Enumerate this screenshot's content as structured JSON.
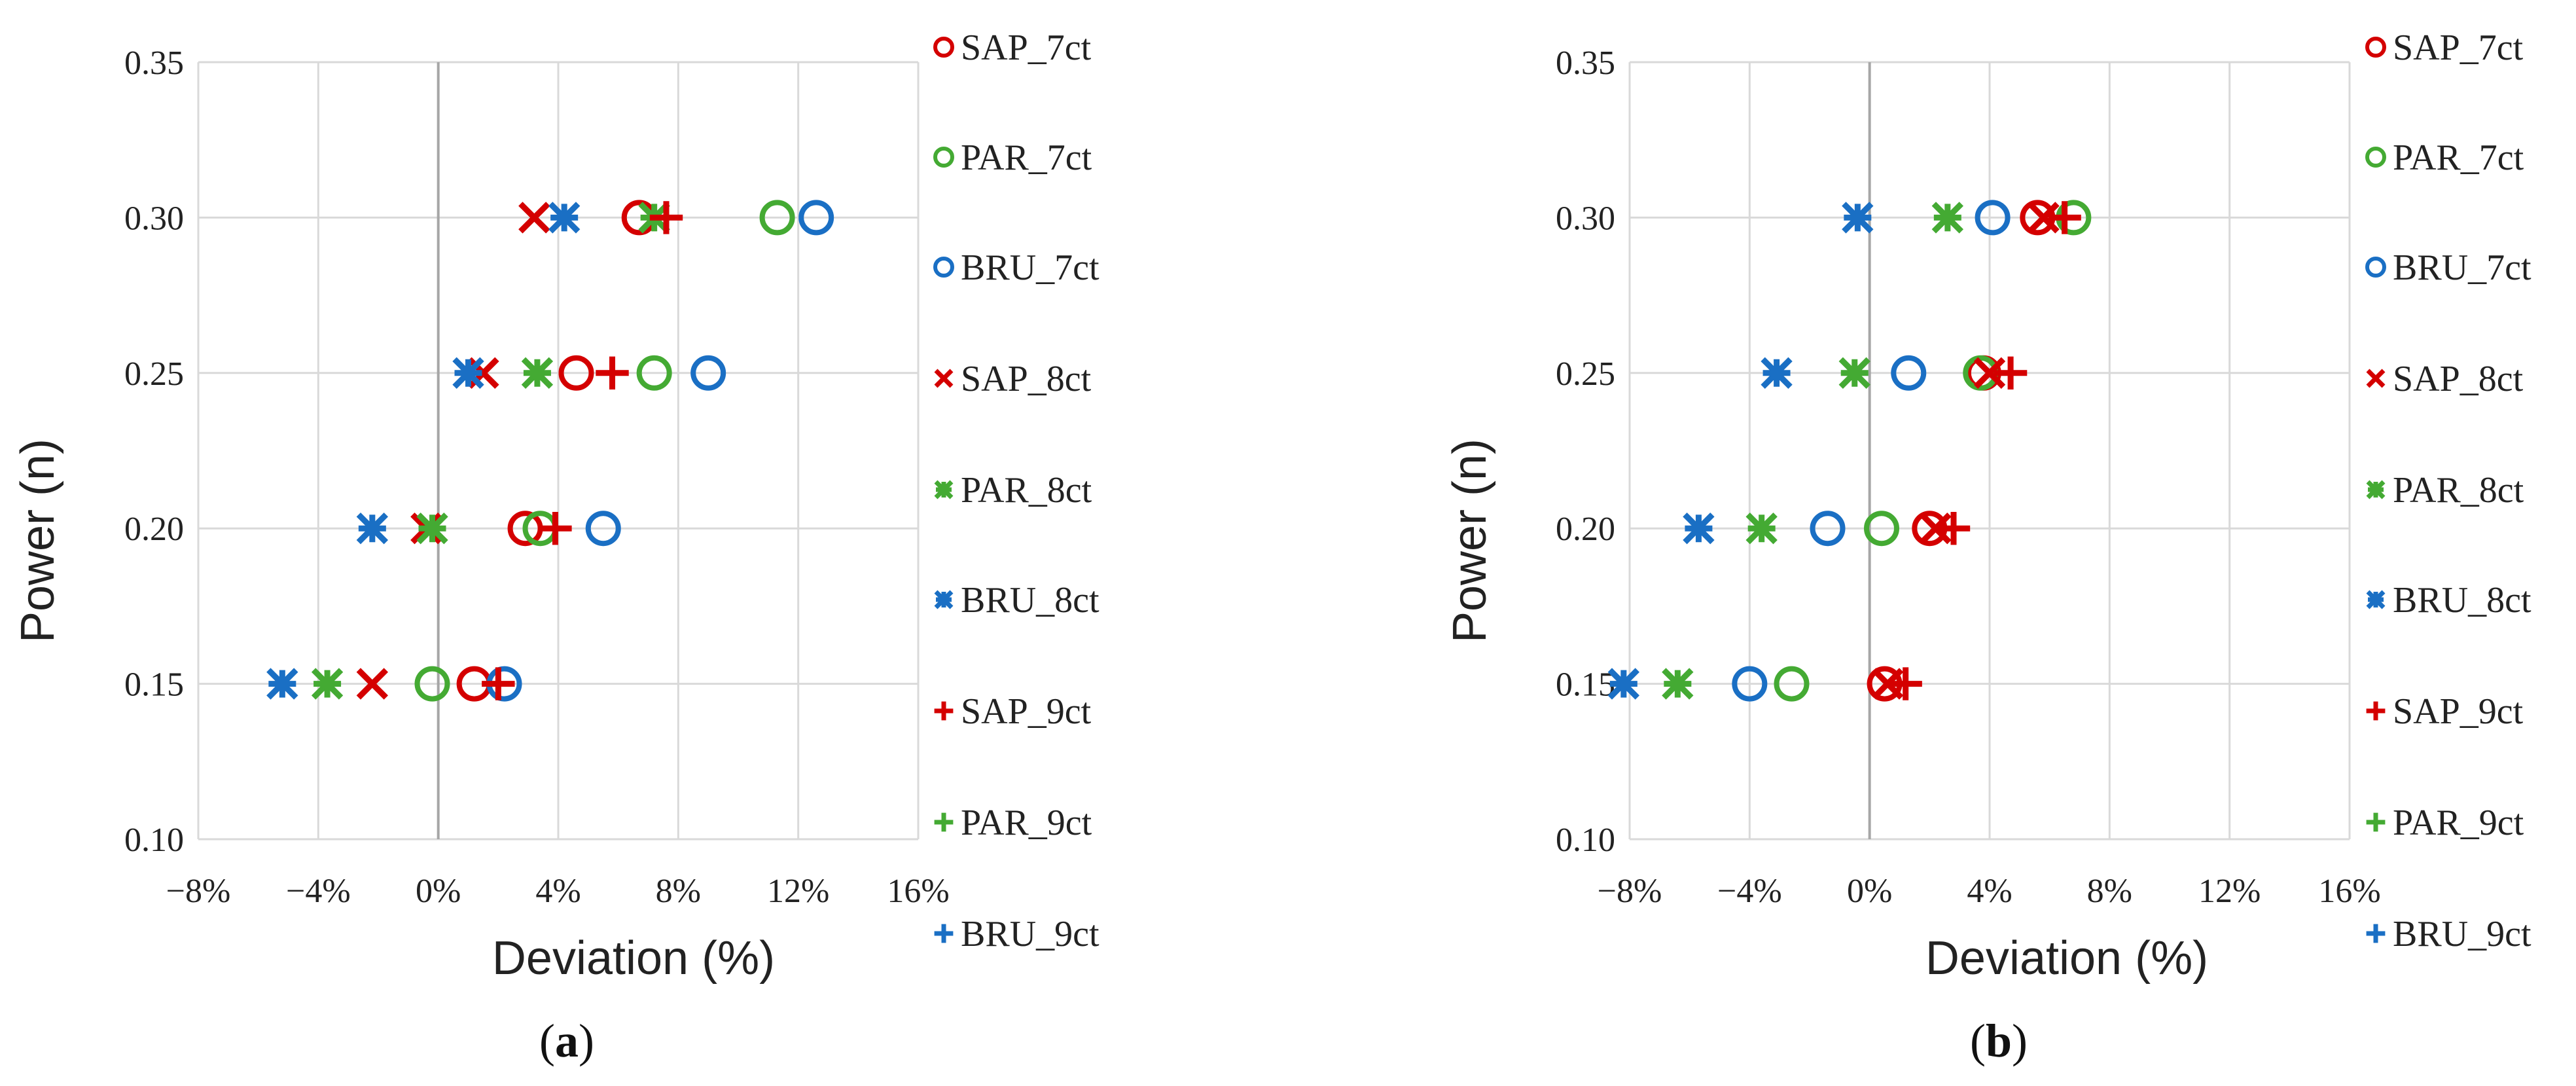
{
  "chart_data": [
    {
      "type": "scatter",
      "caption": "(a)",
      "caption_parts": [
        "(",
        "a",
        ")"
      ],
      "xlabel": "Deviation (%)",
      "ylabel": "Power (n)",
      "xlim": [
        -8,
        16
      ],
      "ylim": [
        0.1,
        0.35
      ],
      "xticks": [
        "−8%",
        "−4%",
        "0%",
        "4%",
        "8%",
        "12%",
        "16%"
      ],
      "yticks": [
        "0.10",
        "0.15",
        "0.20",
        "0.25",
        "0.30",
        "0.35"
      ],
      "legend_position": "right",
      "series": [
        {
          "name": "SAP_7ct",
          "color": "#d40000",
          "marker": "circle",
          "points": [
            {
              "y": 0.3,
              "x": 6.7
            },
            {
              "y": 0.25,
              "x": 4.6
            },
            {
              "y": 0.2,
              "x": 2.9
            },
            {
              "y": 0.15,
              "x": 1.2
            }
          ]
        },
        {
          "name": "PAR_7ct",
          "color": "#44aa33",
          "marker": "circle",
          "points": [
            {
              "y": 0.3,
              "x": 11.3
            },
            {
              "y": 0.25,
              "x": 7.2
            },
            {
              "y": 0.2,
              "x": 3.4
            },
            {
              "y": 0.15,
              "x": -0.2
            }
          ]
        },
        {
          "name": "BRU_7ct",
          "color": "#1a6fc4",
          "marker": "circle",
          "points": [
            {
              "y": 0.3,
              "x": 12.6
            },
            {
              "y": 0.25,
              "x": 9.0
            },
            {
              "y": 0.2,
              "x": 5.5
            },
            {
              "y": 0.15,
              "x": 2.2
            }
          ]
        },
        {
          "name": "SAP_8ct",
          "color": "#d40000",
          "marker": "x",
          "points": [
            {
              "y": 0.3,
              "x": 3.2
            },
            {
              "y": 0.25,
              "x": 1.5
            },
            {
              "y": 0.2,
              "x": -0.4
            },
            {
              "y": 0.15,
              "x": -2.2
            }
          ]
        },
        {
          "name": "PAR_8ct",
          "color": "#44aa33",
          "marker": "asterisk",
          "points": [
            {
              "y": 0.3,
              "x": 7.2
            },
            {
              "y": 0.25,
              "x": 3.3
            },
            {
              "y": 0.2,
              "x": -0.2
            },
            {
              "y": 0.15,
              "x": -3.7
            }
          ]
        },
        {
          "name": "BRU_8ct",
          "color": "#1a6fc4",
          "marker": "asterisk",
          "points": [
            {
              "y": 0.3,
              "x": 4.2
            },
            {
              "y": 0.25,
              "x": 1.0
            },
            {
              "y": 0.2,
              "x": -2.2
            },
            {
              "y": 0.15,
              "x": -5.2
            }
          ]
        },
        {
          "name": "SAP_9ct",
          "color": "#d40000",
          "marker": "plus",
          "points": [
            {
              "y": 0.3,
              "x": 7.6
            },
            {
              "y": 0.25,
              "x": 5.8
            },
            {
              "y": 0.2,
              "x": 3.9
            },
            {
              "y": 0.15,
              "x": 2.0
            }
          ]
        },
        {
          "name": "PAR_9ct",
          "color": "#44aa33",
          "marker": "plus",
          "points": []
        },
        {
          "name": "BRU_9ct",
          "color": "#1a6fc4",
          "marker": "plus",
          "points": []
        }
      ]
    },
    {
      "type": "scatter",
      "caption": "(b)",
      "caption_parts": [
        "(",
        "b",
        ")"
      ],
      "xlabel": "Deviation (%)",
      "ylabel": "Power (n)",
      "xlim": [
        -8,
        16
      ],
      "ylim": [
        0.1,
        0.35
      ],
      "xticks": [
        "−8%",
        "−4%",
        "0%",
        "4%",
        "8%",
        "12%",
        "16%"
      ],
      "yticks": [
        "0.10",
        "0.15",
        "0.20",
        "0.25",
        "0.30",
        "0.35"
      ],
      "legend_position": "right",
      "series": [
        {
          "name": "SAP_7ct",
          "color": "#d40000",
          "marker": "circle",
          "points": [
            {
              "y": 0.3,
              "x": 5.6
            },
            {
              "y": 0.25,
              "x": 3.8
            },
            {
              "y": 0.2,
              "x": 2.0
            },
            {
              "y": 0.15,
              "x": 0.5
            }
          ]
        },
        {
          "name": "PAR_7ct",
          "color": "#44aa33",
          "marker": "circle",
          "points": [
            {
              "y": 0.3,
              "x": 6.8
            },
            {
              "y": 0.25,
              "x": 3.7
            },
            {
              "y": 0.2,
              "x": 0.4
            },
            {
              "y": 0.15,
              "x": -2.6
            }
          ]
        },
        {
          "name": "BRU_7ct",
          "color": "#1a6fc4",
          "marker": "circle",
          "points": [
            {
              "y": 0.3,
              "x": 4.1
            },
            {
              "y": 0.25,
              "x": 1.3
            },
            {
              "y": 0.2,
              "x": -1.4
            },
            {
              "y": 0.15,
              "x": -4.0
            }
          ]
        },
        {
          "name": "SAP_8ct",
          "color": "#d40000",
          "marker": "x",
          "points": [
            {
              "y": 0.3,
              "x": 5.8
            },
            {
              "y": 0.25,
              "x": 4.0
            },
            {
              "y": 0.2,
              "x": 2.2
            },
            {
              "y": 0.15,
              "x": 0.6
            }
          ]
        },
        {
          "name": "PAR_8ct",
          "color": "#44aa33",
          "marker": "asterisk",
          "points": [
            {
              "y": 0.3,
              "x": 2.6
            },
            {
              "y": 0.25,
              "x": -0.5
            },
            {
              "y": 0.2,
              "x": -3.6
            },
            {
              "y": 0.15,
              "x": -6.4
            }
          ]
        },
        {
          "name": "BRU_8ct",
          "color": "#1a6fc4",
          "marker": "asterisk",
          "points": [
            {
              "y": 0.3,
              "x": -0.4
            },
            {
              "y": 0.25,
              "x": -3.1
            },
            {
              "y": 0.2,
              "x": -5.7
            },
            {
              "y": 0.15,
              "x": -8.2
            }
          ]
        },
        {
          "name": "SAP_9ct",
          "color": "#d40000",
          "marker": "plus",
          "points": [
            {
              "y": 0.3,
              "x": 6.5
            },
            {
              "y": 0.25,
              "x": 4.7
            },
            {
              "y": 0.2,
              "x": 2.8
            },
            {
              "y": 0.15,
              "x": 1.2
            }
          ]
        },
        {
          "name": "PAR_9ct",
          "color": "#44aa33",
          "marker": "plus",
          "points": []
        },
        {
          "name": "BRU_9ct",
          "color": "#1a6fc4",
          "marker": "plus",
          "points": []
        }
      ]
    }
  ]
}
